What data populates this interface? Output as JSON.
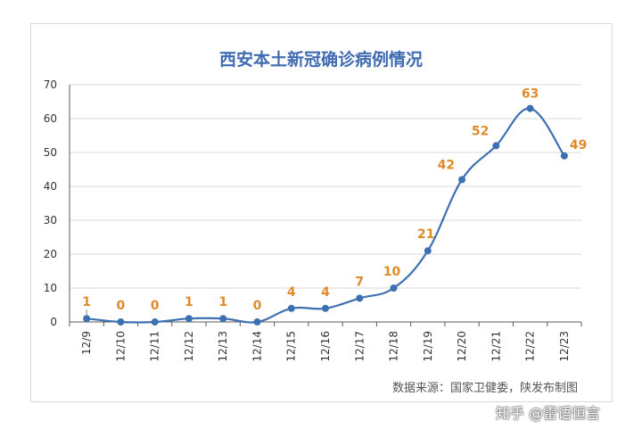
{
  "title": "西安本土新冠确诊病例情况",
  "source_note": "数据来源：国家卫健委，陕发布制图",
  "watermark": "知乎 @雷语恒言",
  "colors": {
    "line": "#3d70b2",
    "label": "#e08a2c",
    "grid": "#d9d9d9",
    "axis": "#595959"
  },
  "chart_data": {
    "type": "line",
    "title": "西安本土新冠确诊病例情况",
    "categories": [
      "12/9",
      "12/10",
      "12/11",
      "12/12",
      "12/13",
      "12/14",
      "12/15",
      "12/16",
      "12/17",
      "12/18",
      "12/19",
      "12/20",
      "12/21",
      "12/22",
      "12/23"
    ],
    "values": [
      1,
      0,
      0,
      1,
      1,
      0,
      4,
      4,
      7,
      10,
      21,
      42,
      52,
      63,
      49
    ],
    "y_ticks": [
      0,
      10,
      20,
      30,
      40,
      50,
      60,
      70
    ],
    "ylim": [
      0,
      70
    ],
    "xlabel": "",
    "ylabel": "",
    "grid": true,
    "smooth": true,
    "data_labels": true
  }
}
